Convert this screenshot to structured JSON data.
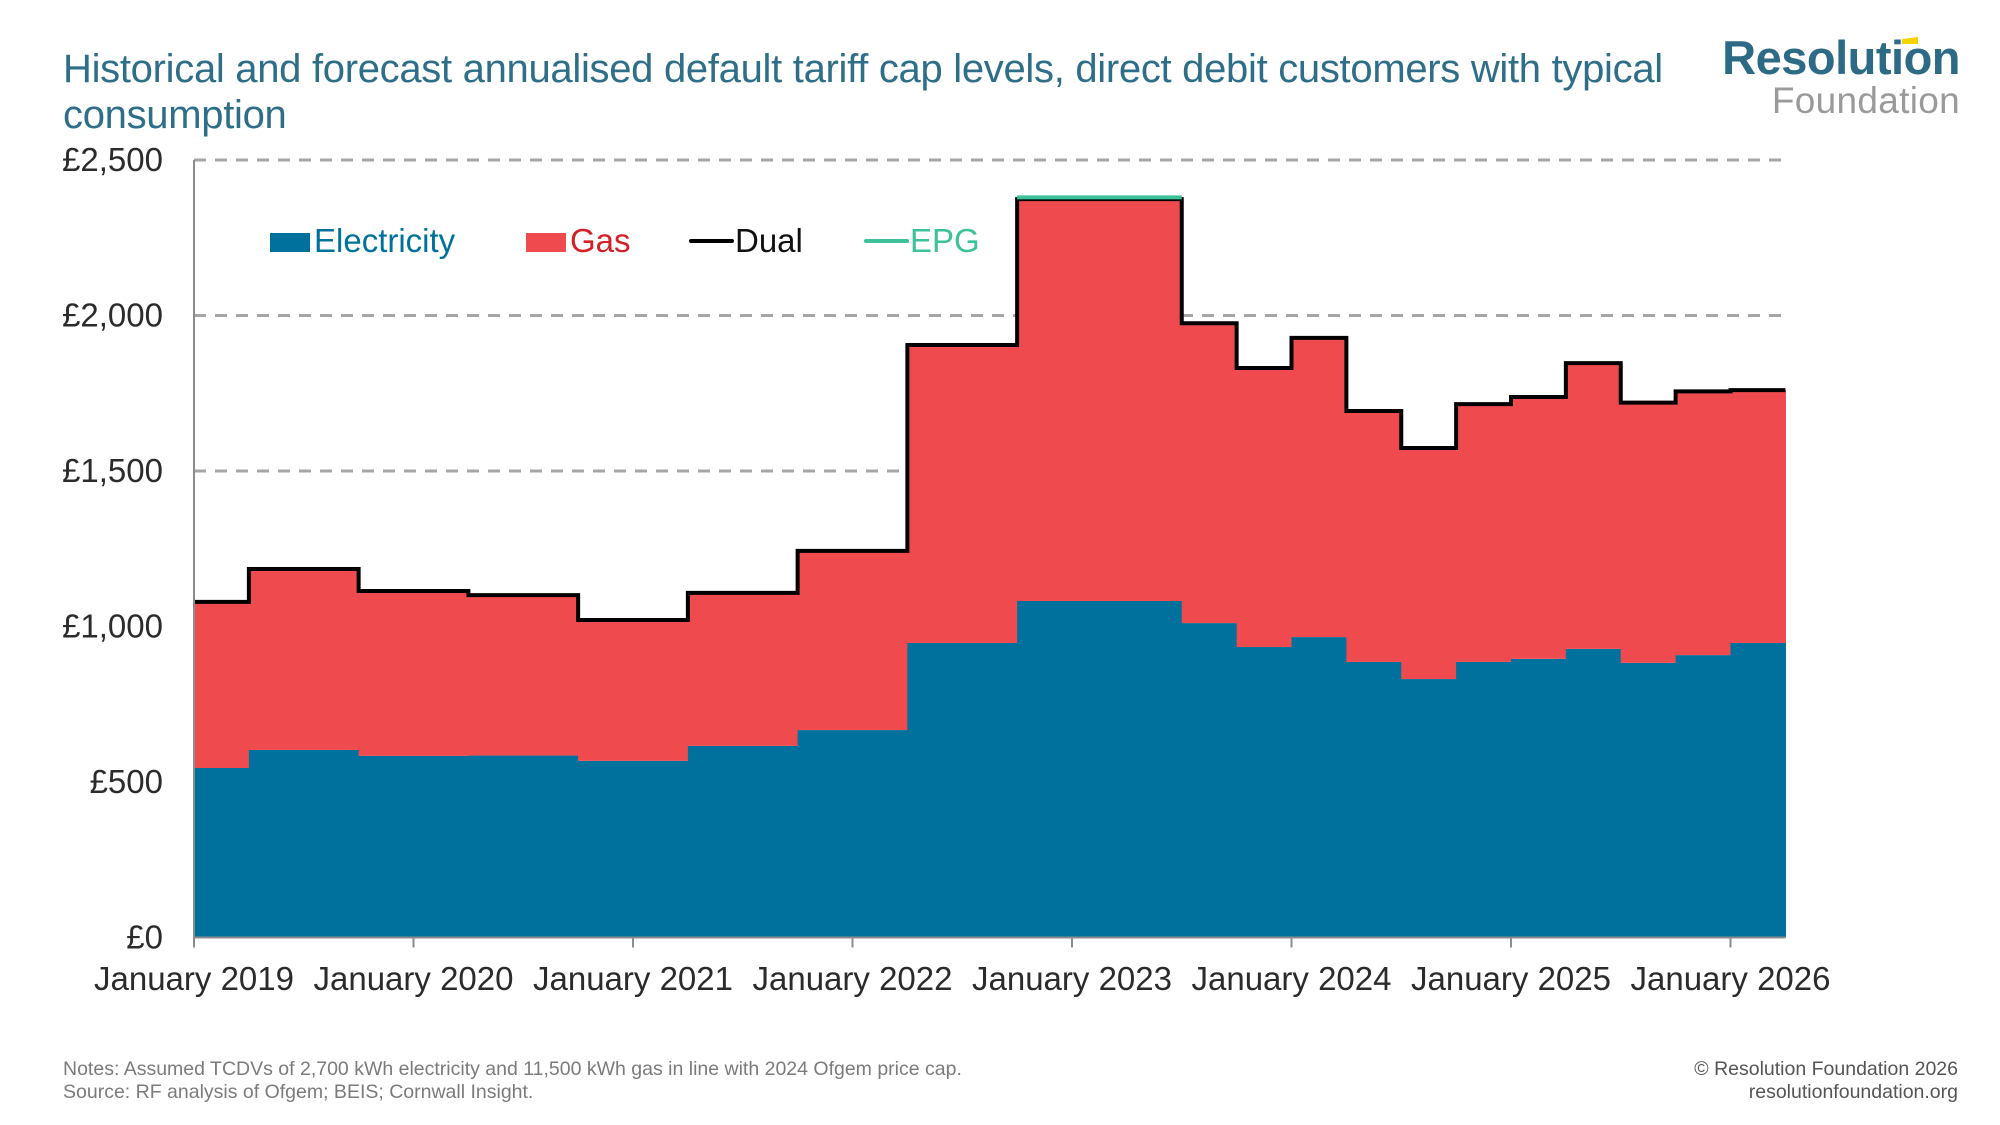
{
  "header": {
    "title": "Historical and forecast annualised default tariff cap levels, direct debit customers with typical consumption"
  },
  "logo": {
    "line1": "Resolution",
    "line2": "Foundation"
  },
  "footer": {
    "notes": "Notes: Assumed TCDVs of 2,700 kWh electricity and 11,500 kWh gas in line with 2024 Ofgem price cap.",
    "source": "Source: RF analysis of Ofgem; BEIS; Cornwall Insight.",
    "copyright": "© Resolution Foundation 2026",
    "website": "resolutionfoundation.org"
  },
  "colors": {
    "electricity": "#00719c",
    "gas": "#ef4b4f",
    "dual": "#000000",
    "epg": "#3cc19a",
    "title": "#2e6e88",
    "grid": "#a6a6a6"
  },
  "chart_data": {
    "type": "area",
    "subtype": "stacked-step",
    "title": "Historical and forecast annualised default tariff cap levels, direct debit customers with typical consumption",
    "xlabel": "",
    "ylabel": "",
    "ylim": [
      0,
      2500
    ],
    "yticks": [
      0,
      500,
      1000,
      1500,
      2000,
      2500
    ],
    "ytick_labels": [
      "£0",
      "£500",
      "£1,000",
      "£1,500",
      "£2,000",
      "£2,500"
    ],
    "xlim": [
      "2019-01",
      "2026-04"
    ],
    "xticks": [
      "2019-01",
      "2020-01",
      "2021-01",
      "2022-01",
      "2023-01",
      "2024-01",
      "2025-01",
      "2026-01"
    ],
    "xtick_labels": [
      "January 2019",
      "January 2020",
      "January 2021",
      "January 2022",
      "January 2023",
      "January 2024",
      "January 2025",
      "January 2026"
    ],
    "grid": "horizontal-dashed",
    "legend": {
      "position": "top-left",
      "entries": [
        {
          "name": "Electricity",
          "kind": "box"
        },
        {
          "name": "Gas",
          "kind": "box"
        },
        {
          "name": "Dual",
          "kind": "line"
        },
        {
          "name": "EPG",
          "kind": "line"
        }
      ]
    },
    "periods": [
      {
        "start": "2019-01",
        "end": "2019-04",
        "electricity": 545,
        "dual": 1079
      },
      {
        "start": "2019-04",
        "end": "2019-10",
        "electricity": 603,
        "dual": 1185
      },
      {
        "start": "2019-10",
        "end": "2020-04",
        "electricity": 584,
        "dual": 1114
      },
      {
        "start": "2020-04",
        "end": "2020-10",
        "electricity": 585,
        "dual": 1101
      },
      {
        "start": "2020-10",
        "end": "2021-04",
        "electricity": 568,
        "dual": 1021
      },
      {
        "start": "2021-04",
        "end": "2021-10",
        "electricity": 616,
        "dual": 1108
      },
      {
        "start": "2021-10",
        "end": "2022-04",
        "electricity": 667,
        "dual": 1243
      },
      {
        "start": "2022-04",
        "end": "2022-10",
        "electricity": 947,
        "dual": 1905
      },
      {
        "start": "2022-10",
        "end": "2023-07",
        "electricity": 1082,
        "dual": 2374,
        "epg": 2380
      },
      {
        "start": "2023-07",
        "end": "2023-10",
        "electricity": 1011,
        "dual": 1975
      },
      {
        "start": "2023-10",
        "end": "2024-01",
        "electricity": 934,
        "dual": 1831
      },
      {
        "start": "2024-01",
        "end": "2024-04",
        "electricity": 966,
        "dual": 1928
      },
      {
        "start": "2024-04",
        "end": "2024-07",
        "electricity": 886,
        "dual": 1693
      },
      {
        "start": "2024-07",
        "end": "2024-10",
        "electricity": 831,
        "dual": 1574
      },
      {
        "start": "2024-10",
        "end": "2025-01",
        "electricity": 886,
        "dual": 1715
      },
      {
        "start": "2025-01",
        "end": "2025-04",
        "electricity": 896,
        "dual": 1738
      },
      {
        "start": "2025-04",
        "end": "2025-07",
        "electricity": 928,
        "dual": 1847
      },
      {
        "start": "2025-07",
        "end": "2025-10",
        "electricity": 883,
        "dual": 1720
      },
      {
        "start": "2025-10",
        "end": "2026-01",
        "electricity": 908,
        "dual": 1756
      },
      {
        "start": "2026-01",
        "end": "2026-04",
        "electricity": 947,
        "dual": 1760
      }
    ],
    "series": [
      {
        "name": "Electricity",
        "values_ref": "periods.electricity"
      },
      {
        "name": "Gas",
        "values_note": "dual minus electricity"
      },
      {
        "name": "Dual",
        "values_ref": "periods.dual"
      },
      {
        "name": "EPG",
        "values_ref": "periods.epg"
      }
    ]
  }
}
